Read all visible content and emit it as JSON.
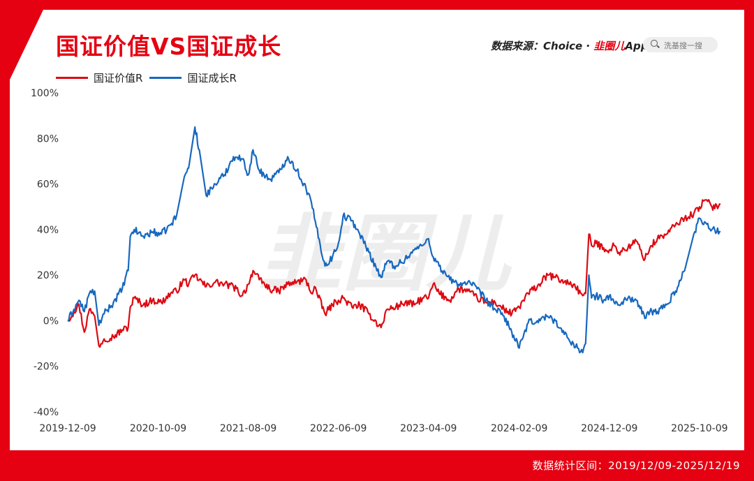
{
  "title": "国证价值VS国证成长",
  "source": {
    "prefix": "数据来源：Choice · ",
    "brand": "韭圈儿",
    "suffix": "App"
  },
  "search": {
    "placeholder": "洗基搜一搜",
    "icon": "search-icon"
  },
  "watermark": "韭圈儿",
  "footer": "数据统计区间：2019/12/09-2025/12/19",
  "colors": {
    "accent": "#e50012",
    "value_series": "#dd0a12",
    "growth_series": "#1768bf"
  },
  "chart_data": {
    "type": "line",
    "title": "国证价值VS国证成长",
    "xlabel": "",
    "ylabel": "",
    "ylim": [
      -40,
      100
    ],
    "y_unit": "%",
    "yticks": [
      "100%",
      "80%",
      "60%",
      "40%",
      "20%",
      "0%",
      "-20%",
      "-40%"
    ],
    "xticks": [
      "2019-12-09",
      "2020-10-09",
      "2021-08-09",
      "2022-06-09",
      "2023-04-09",
      "2024-02-09",
      "2024-12-09",
      "2025-10-09"
    ],
    "x_range": [
      "2019-12-09",
      "2025-12-19"
    ],
    "grid": false,
    "legend_position": "top-left",
    "series": [
      {
        "name": "国证价值R",
        "color": "#dd0a12",
        "points": [
          [
            "2019-12-09",
            0
          ],
          [
            "2019-12-30",
            4
          ],
          [
            "2020-01-16",
            7
          ],
          [
            "2020-02-03",
            -5
          ],
          [
            "2020-02-20",
            5
          ],
          [
            "2020-03-09",
            2
          ],
          [
            "2020-03-23",
            -11
          ],
          [
            "2020-04-10",
            -8
          ],
          [
            "2020-05-11",
            -7
          ],
          [
            "2020-06-10",
            -4
          ],
          [
            "2020-06-30",
            -3
          ],
          [
            "2020-07-07",
            6
          ],
          [
            "2020-07-20",
            10
          ],
          [
            "2020-08-20",
            7
          ],
          [
            "2020-09-20",
            9
          ],
          [
            "2020-10-20",
            8
          ],
          [
            "2020-11-20",
            12
          ],
          [
            "2020-12-10",
            13
          ],
          [
            "2021-01-05",
            18
          ],
          [
            "2021-01-20",
            16
          ],
          [
            "2021-02-10",
            20
          ],
          [
            "2021-02-25",
            18
          ],
          [
            "2021-03-20",
            15
          ],
          [
            "2021-04-20",
            17
          ],
          [
            "2021-05-20",
            16
          ],
          [
            "2021-06-20",
            15
          ],
          [
            "2021-07-20",
            11
          ],
          [
            "2021-08-09",
            16
          ],
          [
            "2021-08-25",
            22
          ],
          [
            "2021-09-15",
            18
          ],
          [
            "2021-10-20",
            14
          ],
          [
            "2021-11-20",
            13
          ],
          [
            "2021-12-20",
            16
          ],
          [
            "2022-01-20",
            17
          ],
          [
            "2022-02-20",
            18
          ],
          [
            "2022-03-10",
            12
          ],
          [
            "2022-03-20",
            15
          ],
          [
            "2022-04-25",
            3
          ],
          [
            "2022-05-20",
            7
          ],
          [
            "2022-06-09",
            9
          ],
          [
            "2022-06-25",
            10
          ],
          [
            "2022-07-25",
            6
          ],
          [
            "2022-08-20",
            7
          ],
          [
            "2022-09-20",
            3
          ],
          [
            "2022-10-31",
            -3
          ],
          [
            "2022-11-20",
            5
          ],
          [
            "2022-12-20",
            6
          ],
          [
            "2023-01-20",
            8
          ],
          [
            "2023-02-20",
            7
          ],
          [
            "2023-03-20",
            10
          ],
          [
            "2023-04-09",
            10
          ],
          [
            "2023-04-25",
            16
          ],
          [
            "2023-05-15",
            12
          ],
          [
            "2023-06-20",
            9
          ],
          [
            "2023-07-20",
            14
          ],
          [
            "2023-08-20",
            13
          ],
          [
            "2023-09-20",
            10
          ],
          [
            "2023-10-20",
            8
          ],
          [
            "2023-11-20",
            8
          ],
          [
            "2023-12-20",
            5
          ],
          [
            "2024-01-15",
            3
          ],
          [
            "2024-02-09",
            6
          ],
          [
            "2024-03-10",
            12
          ],
          [
            "2024-04-10",
            15
          ],
          [
            "2024-05-15",
            20
          ],
          [
            "2024-06-10",
            19
          ],
          [
            "2024-07-10",
            17
          ],
          [
            "2024-08-10",
            16
          ],
          [
            "2024-09-10",
            11
          ],
          [
            "2024-09-20",
            12
          ],
          [
            "2024-10-01",
            38
          ],
          [
            "2024-10-10",
            33
          ],
          [
            "2024-10-25",
            34
          ],
          [
            "2024-11-20",
            32
          ],
          [
            "2024-12-09",
            31
          ],
          [
            "2024-12-25",
            33
          ],
          [
            "2025-01-10",
            30
          ],
          [
            "2025-02-10",
            32
          ],
          [
            "2025-03-10",
            35
          ],
          [
            "2025-04-08",
            27
          ],
          [
            "2025-04-25",
            32
          ],
          [
            "2025-05-20",
            36
          ],
          [
            "2025-06-20",
            38
          ],
          [
            "2025-07-20",
            42
          ],
          [
            "2025-08-20",
            45
          ],
          [
            "2025-09-20",
            47
          ],
          [
            "2025-10-09",
            50
          ],
          [
            "2025-10-30",
            53
          ],
          [
            "2025-11-20",
            50
          ],
          [
            "2025-12-19",
            51
          ]
        ]
      },
      {
        "name": "国证成长R",
        "color": "#1768bf",
        "points": [
          [
            "2019-12-09",
            0
          ],
          [
            "2019-12-30",
            5
          ],
          [
            "2020-01-16",
            9
          ],
          [
            "2020-02-03",
            4
          ],
          [
            "2020-02-20",
            12
          ],
          [
            "2020-03-09",
            13
          ],
          [
            "2020-03-23",
            -2
          ],
          [
            "2020-04-10",
            3
          ],
          [
            "2020-05-11",
            8
          ],
          [
            "2020-06-10",
            14
          ],
          [
            "2020-06-30",
            22
          ],
          [
            "2020-07-07",
            37
          ],
          [
            "2020-07-20",
            40
          ],
          [
            "2020-08-20",
            37
          ],
          [
            "2020-09-20",
            39
          ],
          [
            "2020-10-20",
            38
          ],
          [
            "2020-11-20",
            42
          ],
          [
            "2020-12-10",
            46
          ],
          [
            "2021-01-05",
            63
          ],
          [
            "2021-01-20",
            67
          ],
          [
            "2021-02-10",
            85
          ],
          [
            "2021-02-25",
            75
          ],
          [
            "2021-03-20",
            55
          ],
          [
            "2021-04-20",
            60
          ],
          [
            "2021-05-20",
            64
          ],
          [
            "2021-06-20",
            72
          ],
          [
            "2021-07-20",
            71
          ],
          [
            "2021-08-09",
            64
          ],
          [
            "2021-08-25",
            75
          ],
          [
            "2021-09-15",
            66
          ],
          [
            "2021-10-20",
            62
          ],
          [
            "2021-11-20",
            65
          ],
          [
            "2021-12-20",
            72
          ],
          [
            "2022-01-20",
            66
          ],
          [
            "2022-02-20",
            58
          ],
          [
            "2022-03-10",
            52
          ],
          [
            "2022-03-20",
            45
          ],
          [
            "2022-04-25",
            24
          ],
          [
            "2022-05-20",
            28
          ],
          [
            "2022-06-09",
            34
          ],
          [
            "2022-06-25",
            46
          ],
          [
            "2022-07-25",
            44
          ],
          [
            "2022-08-20",
            38
          ],
          [
            "2022-09-20",
            30
          ],
          [
            "2022-10-31",
            19
          ],
          [
            "2022-11-20",
            26
          ],
          [
            "2022-12-20",
            24
          ],
          [
            "2023-01-20",
            27
          ],
          [
            "2023-02-20",
            31
          ],
          [
            "2023-03-20",
            33
          ],
          [
            "2023-04-09",
            36
          ],
          [
            "2023-04-25",
            28
          ],
          [
            "2023-05-15",
            24
          ],
          [
            "2023-06-20",
            18
          ],
          [
            "2023-07-20",
            16
          ],
          [
            "2023-08-20",
            17
          ],
          [
            "2023-09-20",
            14
          ],
          [
            "2023-10-20",
            9
          ],
          [
            "2023-11-20",
            5
          ],
          [
            "2023-12-20",
            2
          ],
          [
            "2024-01-15",
            -5
          ],
          [
            "2024-02-09",
            -12
          ],
          [
            "2024-03-10",
            -1
          ],
          [
            "2024-04-10",
            0
          ],
          [
            "2024-05-15",
            2
          ],
          [
            "2024-06-10",
            0
          ],
          [
            "2024-07-10",
            -6
          ],
          [
            "2024-08-10",
            -10
          ],
          [
            "2024-09-10",
            -14
          ],
          [
            "2024-09-20",
            -10
          ],
          [
            "2024-10-01",
            20
          ],
          [
            "2024-10-10",
            10
          ],
          [
            "2024-10-25",
            11
          ],
          [
            "2024-11-20",
            9
          ],
          [
            "2024-12-09",
            11
          ],
          [
            "2024-12-25",
            8
          ],
          [
            "2025-01-10",
            7
          ],
          [
            "2025-02-10",
            10
          ],
          [
            "2025-03-10",
            9
          ],
          [
            "2025-04-08",
            1
          ],
          [
            "2025-04-25",
            4
          ],
          [
            "2025-05-20",
            4
          ],
          [
            "2025-06-20",
            7
          ],
          [
            "2025-07-20",
            13
          ],
          [
            "2025-08-20",
            22
          ],
          [
            "2025-09-20",
            38
          ],
          [
            "2025-10-09",
            45
          ],
          [
            "2025-10-30",
            43
          ],
          [
            "2025-11-20",
            40
          ],
          [
            "2025-12-19",
            39
          ]
        ]
      }
    ]
  }
}
